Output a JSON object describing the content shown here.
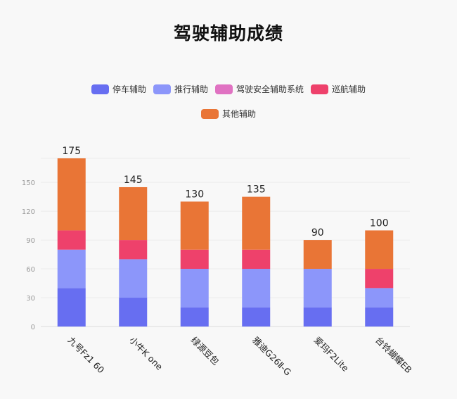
{
  "chart_data": {
    "type": "bar",
    "stacked": true,
    "title": "驾驶辅助成绩",
    "xlabel": "",
    "ylabel": "",
    "ylim": [
      0,
      175
    ],
    "yticks": [
      0,
      30,
      60,
      90,
      120,
      150
    ],
    "grid": true,
    "legend_position": "top",
    "categories": [
      "九号Fz1 60",
      "小牛K one",
      "绿源豆包",
      "雅迪G26Ⅱ-G",
      "爱玛F2Lite",
      "台铃蝴蝶EB"
    ],
    "series": [
      {
        "name": "停车辅助",
        "color": "#676ef1",
        "values": [
          40,
          30,
          20,
          20,
          20,
          20
        ]
      },
      {
        "name": "推行辅助",
        "color": "#8c96fa",
        "values": [
          40,
          40,
          40,
          40,
          40,
          20
        ]
      },
      {
        "name": "驾驶安全辅助系统",
        "color": "#e072c2",
        "values": [
          0,
          0,
          0,
          0,
          0,
          0
        ]
      },
      {
        "name": "巡航辅助",
        "color": "#ee416b",
        "values": [
          20,
          20,
          20,
          20,
          0,
          20
        ]
      },
      {
        "name": "其他辅助",
        "color": "#e97536",
        "values": [
          75,
          55,
          50,
          55,
          30,
          40
        ]
      }
    ],
    "totals": [
      175,
      145,
      130,
      135,
      90,
      100
    ]
  }
}
